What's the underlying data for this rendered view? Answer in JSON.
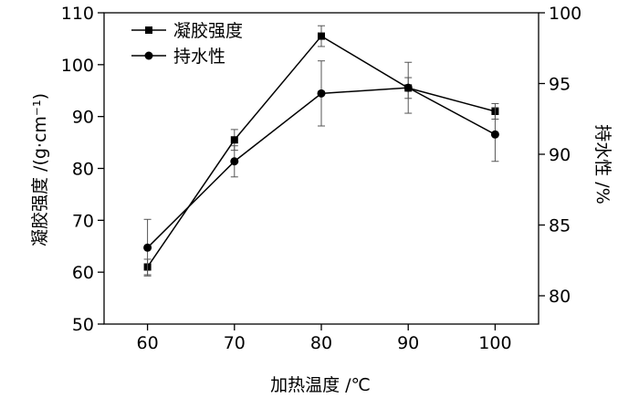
{
  "chart_data": {
    "type": "line",
    "x": [
      60,
      70,
      80,
      90,
      100
    ],
    "x_ticks": [
      "60",
      "70",
      "80",
      "90",
      "100"
    ],
    "xlim": [
      55,
      105
    ],
    "xlabel": "加热温度 /℃",
    "ylabel_left": "凝胶强度 /(g·cm⁻¹)",
    "ylabel_right": "持水性 /%",
    "ylim_left": [
      50,
      110
    ],
    "ylim_right": [
      78,
      100
    ],
    "yticks_left": [
      "50",
      "60",
      "70",
      "80",
      "90",
      "100",
      "110"
    ],
    "yticks_right": [
      "80",
      "85",
      "90",
      "95",
      "100"
    ],
    "legend_position": "top-left",
    "grid": false,
    "series": [
      {
        "name": "凝胶强度",
        "axis": "left",
        "marker": "square",
        "values": [
          61,
          85.5,
          105.5,
          95.5,
          91
        ],
        "error": [
          1.5,
          2,
          2,
          2,
          1.5
        ]
      },
      {
        "name": "持水性",
        "axis": "right",
        "marker": "circle",
        "values": [
          83.4,
          89.5,
          94.3,
          94.7,
          91.4
        ],
        "error": [
          2,
          1.1,
          2.3,
          1.8,
          1.9
        ]
      }
    ]
  }
}
